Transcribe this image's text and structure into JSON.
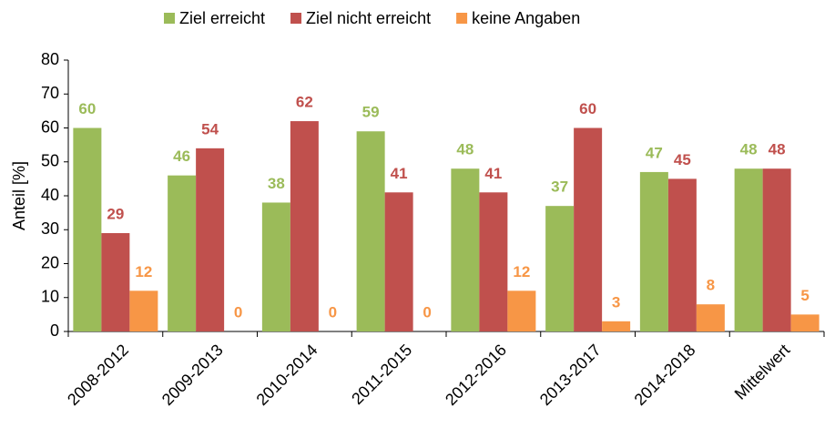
{
  "chart_data": {
    "type": "bar",
    "ylabel": "Anteil [%]",
    "categories": [
      "2008-2012",
      "2009-2013",
      "2010-2014",
      "2011-2015",
      "2012-2016",
      "2013-2017",
      "2014-2018",
      "Mittelwert"
    ],
    "series": [
      {
        "name": "Ziel erreicht",
        "color": "#9bbb59",
        "values": [
          60,
          46,
          38,
          59,
          48,
          37,
          47,
          48
        ]
      },
      {
        "name": "Ziel nicht erreicht",
        "color": "#c0504d",
        "values": [
          29,
          54,
          62,
          41,
          41,
          60,
          45,
          48
        ]
      },
      {
        "name": "keine Angaben",
        "color": "#f79646",
        "values": [
          12,
          0,
          0,
          0,
          12,
          3,
          8,
          5
        ]
      }
    ],
    "ylim": [
      0,
      80
    ],
    "yticks": [
      0,
      10,
      20,
      30,
      40,
      50,
      60,
      70,
      80
    ],
    "legend": "top"
  }
}
